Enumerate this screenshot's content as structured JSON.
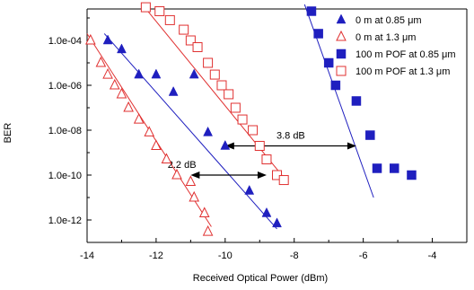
{
  "chart_data": {
    "type": "scatter",
    "xlabel": "Received Optical Power (dBm)",
    "ylabel": "BER",
    "xlim": [
      -14,
      -3
    ],
    "ylim_log10": [
      -13,
      -2.6
    ],
    "x_ticks": [
      -14,
      -12,
      -10,
      -8,
      -6,
      -4
    ],
    "x_tick_labels": [
      "-14",
      "-12",
      "-10",
      "-8",
      "-6",
      "-4"
    ],
    "y_ticks": [
      1e-12,
      1e-10,
      1e-08,
      1e-06,
      0.0001
    ],
    "y_tick_labels": [
      "1.0e-12",
      "1.0e-10",
      "1.0e-08",
      "1.0e-06",
      "1.0e-04"
    ],
    "y_scale": "log",
    "grid": false,
    "legend_position": "top-right",
    "series": [
      {
        "name": "0 m at 0.85 μm",
        "marker": "triangle-filled",
        "color": "#1f1fbf",
        "points": [
          [
            -13.4,
            0.0001
          ],
          [
            -13.0,
            4e-05
          ],
          [
            -12.5,
            3e-06
          ],
          [
            -12.0,
            3e-06
          ],
          [
            -11.5,
            5e-07
          ],
          [
            -10.9,
            3e-06
          ],
          [
            -10.5,
            8e-09
          ],
          [
            -10.0,
            2e-09
          ],
          [
            -9.3,
            2e-11
          ],
          [
            -8.8,
            2e-12
          ],
          [
            -8.5,
            7e-13
          ]
        ],
        "fit": [
          [
            -13.5,
            0.0002
          ],
          [
            -8.5,
            4e-13
          ]
        ]
      },
      {
        "name": "0 m at 1.3 μm",
        "marker": "triangle-open",
        "color": "#e03030",
        "points": [
          [
            -13.9,
            0.0001
          ],
          [
            -13.6,
            1e-05
          ],
          [
            -13.4,
            3e-06
          ],
          [
            -13.2,
            1e-06
          ],
          [
            -13.0,
            4e-07
          ],
          [
            -12.8,
            1e-07
          ],
          [
            -12.5,
            3e-08
          ],
          [
            -12.2,
            8e-09
          ],
          [
            -12.0,
            2e-09
          ],
          [
            -11.7,
            5e-10
          ],
          [
            -11.4,
            1e-10
          ],
          [
            -11.0,
            5e-11
          ],
          [
            -10.9,
            1e-11
          ],
          [
            -10.6,
            2e-12
          ],
          [
            -10.5,
            3e-13
          ]
        ],
        "fit": [
          [
            -14.0,
            0.0002
          ],
          [
            -10.4,
            5e-13
          ]
        ]
      },
      {
        "name": "100 m POF at 0.85 μm",
        "marker": "square-filled",
        "color": "#1f1fbf",
        "points": [
          [
            -7.5,
            0.002
          ],
          [
            -7.3,
            0.0002
          ],
          [
            -7.0,
            1e-05
          ],
          [
            -6.8,
            1e-06
          ],
          [
            -6.2,
            2e-07
          ],
          [
            -5.8,
            6e-09
          ],
          [
            -5.6,
            2e-10
          ],
          [
            -5.1,
            2e-10
          ],
          [
            -4.6,
            1e-10
          ]
        ],
        "fit": [
          [
            -7.7,
            0.004
          ],
          [
            -5.7,
            1e-11
          ]
        ]
      },
      {
        "name": "100 m POF at 1.3 μm",
        "marker": "square-open",
        "color": "#e03030",
        "points": [
          [
            -12.3,
            0.003
          ],
          [
            -11.9,
            0.002
          ],
          [
            -11.6,
            0.0008
          ],
          [
            -11.2,
            0.0003
          ],
          [
            -11.0,
            0.0001
          ],
          [
            -10.8,
            5e-05
          ],
          [
            -10.5,
            1e-05
          ],
          [
            -10.3,
            3e-06
          ],
          [
            -10.1,
            1e-06
          ],
          [
            -9.9,
            4e-07
          ],
          [
            -9.7,
            1e-07
          ],
          [
            -9.5,
            3e-08
          ],
          [
            -9.2,
            1e-08
          ],
          [
            -9.0,
            2e-09
          ],
          [
            -8.8,
            5e-10
          ],
          [
            -8.5,
            1e-10
          ],
          [
            -8.3,
            6e-11
          ]
        ],
        "fit": [
          [
            -12.4,
            0.004
          ],
          [
            -8.2,
            5e-11
          ]
        ]
      }
    ],
    "annotations": [
      {
        "label": "3.8 dB",
        "x1": -10.0,
        "x2": -6.2,
        "y": 2e-09
      },
      {
        "label": "2.2 dB",
        "x1": -11.0,
        "x2": -8.8,
        "y": 1e-10
      }
    ]
  }
}
